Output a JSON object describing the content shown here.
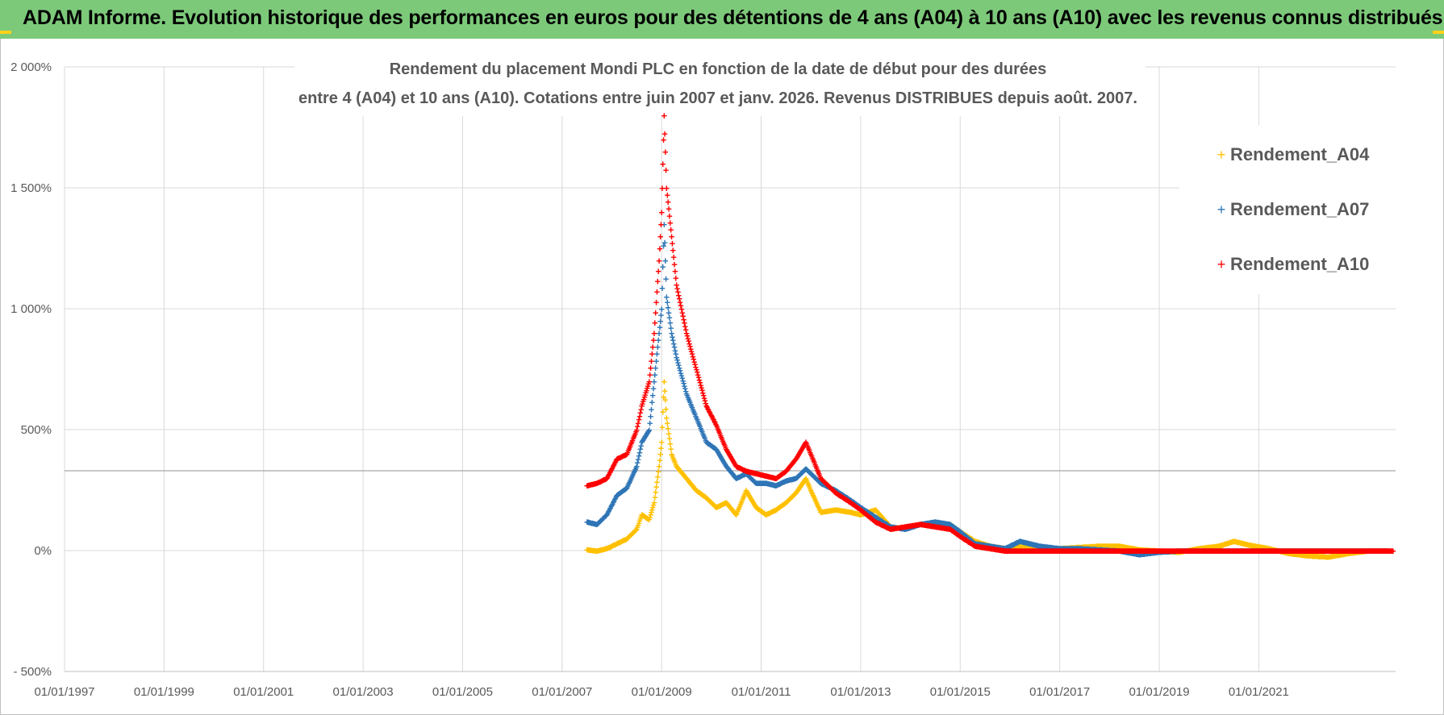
{
  "header": {
    "title": "ADAM Informe. Evolution historique des performances en euros pour des détentions de 4 ans (A04) à 10 ans (A10) avec les revenus connus distribués"
  },
  "colors": {
    "header_bg": "#7dc97a",
    "A04": "#ffc000",
    "A07": "#2e75b6",
    "A10": "#ff0000",
    "grid": "#d9d9d9"
  },
  "chart_data": {
    "type": "scatter",
    "title_lines": [
      "Rendement du placement Mondi PLC en fonction de la date de début pour des durées",
      "entre 4 (A04) et 10 ans (A10). Cotations entre juin 2007 et janv. 2026. Revenus DISTRIBUES depuis août. 2007."
    ],
    "xlabel": "",
    "ylabel": "",
    "xlim": [
      1997.0,
      2023.75
    ],
    "ylim": [
      -500,
      2000
    ],
    "x_ticks": [
      1997,
      1999,
      2001,
      2003,
      2005,
      2007,
      2009,
      2011,
      2013,
      2015,
      2017,
      2019,
      2021
    ],
    "x_tick_labels": [
      "01/01/1997",
      "01/01/1999",
      "01/01/2001",
      "01/01/2003",
      "01/01/2005",
      "01/01/2007",
      "01/01/2009",
      "01/01/2011",
      "01/01/2013",
      "01/01/2015",
      "01/01/2017",
      "01/01/2019",
      "01/01/2021"
    ],
    "y_ticks": [
      -500,
      0,
      500,
      1000,
      1500,
      2000
    ],
    "y_tick_labels": [
      "- 500%",
      "0%",
      "500%",
      "1 000%",
      "1 500%",
      "2 000%"
    ],
    "reference_line_y": 330,
    "legend": [
      "Rendement_A04",
      "Rendement_A07",
      "Rendement_A10"
    ],
    "series": [
      {
        "name": "Rendement_A04",
        "color": "#ffc000",
        "points": [
          [
            2007.5,
            5
          ],
          [
            2007.7,
            0
          ],
          [
            2007.9,
            10
          ],
          [
            2008.1,
            30
          ],
          [
            2008.3,
            50
          ],
          [
            2008.5,
            90
          ],
          [
            2008.6,
            150
          ],
          [
            2008.75,
            130
          ],
          [
            2008.85,
            200
          ],
          [
            2008.95,
            350
          ],
          [
            2009.0,
            450
          ],
          [
            2009.05,
            700
          ],
          [
            2009.1,
            550
          ],
          [
            2009.2,
            400
          ],
          [
            2009.3,
            350
          ],
          [
            2009.5,
            300
          ],
          [
            2009.7,
            250
          ],
          [
            2009.9,
            220
          ],
          [
            2010.1,
            180
          ],
          [
            2010.3,
            200
          ],
          [
            2010.5,
            150
          ],
          [
            2010.7,
            250
          ],
          [
            2010.9,
            180
          ],
          [
            2011.1,
            150
          ],
          [
            2011.3,
            170
          ],
          [
            2011.5,
            200
          ],
          [
            2011.7,
            240
          ],
          [
            2011.9,
            300
          ],
          [
            2012.0,
            250
          ],
          [
            2012.2,
            160
          ],
          [
            2012.5,
            170
          ],
          [
            2012.8,
            160
          ],
          [
            2013.0,
            150
          ],
          [
            2013.3,
            170
          ],
          [
            2013.6,
            100
          ],
          [
            2013.9,
            90
          ],
          [
            2014.2,
            110
          ],
          [
            2014.5,
            100
          ],
          [
            2014.8,
            110
          ],
          [
            2015.0,
            80
          ],
          [
            2015.3,
            40
          ],
          [
            2015.6,
            20
          ],
          [
            2015.9,
            10
          ],
          [
            2016.2,
            20
          ],
          [
            2016.6,
            10
          ],
          [
            2017.0,
            10
          ],
          [
            2017.4,
            15
          ],
          [
            2017.8,
            20
          ],
          [
            2018.2,
            20
          ],
          [
            2018.6,
            5
          ],
          [
            2019.0,
            0
          ],
          [
            2019.4,
            -5
          ],
          [
            2019.8,
            10
          ],
          [
            2020.2,
            20
          ],
          [
            2020.5,
            40
          ],
          [
            2020.8,
            25
          ],
          [
            2021.2,
            10
          ],
          [
            2021.6,
            -10
          ],
          [
            2022.0,
            -20
          ],
          [
            2022.4,
            -25
          ],
          [
            2022.8,
            -10
          ],
          [
            2023.2,
            0
          ],
          [
            2023.6,
            0
          ]
        ]
      },
      {
        "name": "Rendement_A07",
        "color": "#2e75b6",
        "points": [
          [
            2007.5,
            120
          ],
          [
            2007.7,
            110
          ],
          [
            2007.9,
            150
          ],
          [
            2008.1,
            230
          ],
          [
            2008.3,
            260
          ],
          [
            2008.5,
            350
          ],
          [
            2008.6,
            450
          ],
          [
            2008.75,
            500
          ],
          [
            2008.85,
            700
          ],
          [
            2008.95,
            900
          ],
          [
            2009.0,
            1000
          ],
          [
            2009.05,
            1350
          ],
          [
            2009.1,
            1050
          ],
          [
            2009.2,
            900
          ],
          [
            2009.3,
            800
          ],
          [
            2009.5,
            650
          ],
          [
            2009.7,
            550
          ],
          [
            2009.9,
            450
          ],
          [
            2010.1,
            420
          ],
          [
            2010.3,
            350
          ],
          [
            2010.5,
            300
          ],
          [
            2010.7,
            320
          ],
          [
            2010.9,
            280
          ],
          [
            2011.1,
            280
          ],
          [
            2011.3,
            270
          ],
          [
            2011.5,
            290
          ],
          [
            2011.7,
            300
          ],
          [
            2011.9,
            340
          ],
          [
            2012.0,
            320
          ],
          [
            2012.2,
            280
          ],
          [
            2012.5,
            250
          ],
          [
            2012.8,
            210
          ],
          [
            2013.0,
            180
          ],
          [
            2013.3,
            140
          ],
          [
            2013.6,
            100
          ],
          [
            2013.9,
            90
          ],
          [
            2014.2,
            110
          ],
          [
            2014.5,
            120
          ],
          [
            2014.8,
            110
          ],
          [
            2015.0,
            80
          ],
          [
            2015.3,
            30
          ],
          [
            2015.6,
            20
          ],
          [
            2015.9,
            10
          ],
          [
            2016.2,
            40
          ],
          [
            2016.6,
            20
          ],
          [
            2017.0,
            10
          ],
          [
            2017.4,
            10
          ],
          [
            2017.8,
            5
          ],
          [
            2018.2,
            0
          ],
          [
            2018.6,
            -15
          ],
          [
            2019.0,
            -5
          ],
          [
            2019.4,
            0
          ],
          [
            2019.8,
            0
          ],
          [
            2020.2,
            0
          ],
          [
            2020.6,
            0
          ],
          [
            2021.0,
            0
          ],
          [
            2021.5,
            0
          ],
          [
            2022.0,
            0
          ],
          [
            2022.5,
            0
          ],
          [
            2023.0,
            0
          ],
          [
            2023.6,
            0
          ]
        ]
      },
      {
        "name": "Rendement_A10",
        "color": "#ff0000",
        "points": [
          [
            2007.5,
            270
          ],
          [
            2007.7,
            280
          ],
          [
            2007.9,
            300
          ],
          [
            2008.1,
            380
          ],
          [
            2008.3,
            400
          ],
          [
            2008.5,
            500
          ],
          [
            2008.6,
            600
          ],
          [
            2008.75,
            700
          ],
          [
            2008.85,
            900
          ],
          [
            2008.95,
            1200
          ],
          [
            2009.0,
            1400
          ],
          [
            2009.05,
            1800
          ],
          [
            2009.1,
            1500
          ],
          [
            2009.2,
            1300
          ],
          [
            2009.3,
            1100
          ],
          [
            2009.5,
            900
          ],
          [
            2009.7,
            750
          ],
          [
            2009.9,
            600
          ],
          [
            2010.1,
            520
          ],
          [
            2010.3,
            420
          ],
          [
            2010.5,
            350
          ],
          [
            2010.7,
            330
          ],
          [
            2010.9,
            320
          ],
          [
            2011.1,
            310
          ],
          [
            2011.3,
            300
          ],
          [
            2011.5,
            330
          ],
          [
            2011.7,
            380
          ],
          [
            2011.9,
            450
          ],
          [
            2012.0,
            400
          ],
          [
            2012.2,
            300
          ],
          [
            2012.5,
            240
          ],
          [
            2012.8,
            200
          ],
          [
            2013.0,
            170
          ],
          [
            2013.3,
            120
          ],
          [
            2013.6,
            90
          ],
          [
            2013.9,
            100
          ],
          [
            2014.2,
            110
          ],
          [
            2014.5,
            100
          ],
          [
            2014.8,
            90
          ],
          [
            2015.0,
            60
          ],
          [
            2015.3,
            20
          ],
          [
            2015.6,
            10
          ],
          [
            2015.9,
            0
          ],
          [
            2016.3,
            0
          ],
          [
            2016.8,
            0
          ],
          [
            2017.3,
            0
          ],
          [
            2017.8,
            0
          ],
          [
            2018.3,
            0
          ],
          [
            2018.8,
            0
          ],
          [
            2019.3,
            0
          ],
          [
            2019.8,
            0
          ],
          [
            2020.3,
            0
          ],
          [
            2020.8,
            0
          ],
          [
            2021.3,
            0
          ],
          [
            2021.8,
            0
          ],
          [
            2022.3,
            0
          ],
          [
            2022.8,
            0
          ],
          [
            2023.3,
            0
          ],
          [
            2023.7,
            0
          ]
        ]
      }
    ]
  }
}
